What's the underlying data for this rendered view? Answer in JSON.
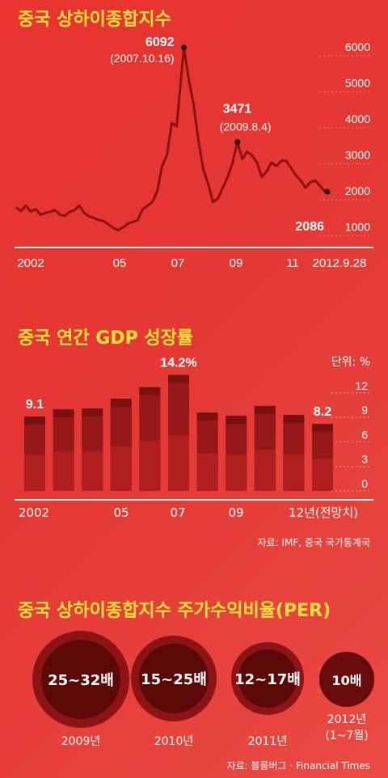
{
  "stock": {
    "title": "중국 상하이종합지수",
    "chart_data": {
      "type": "line",
      "title": "중국 상하이종합지수",
      "x_ticks": [
        "2002",
        "05",
        "07",
        "09",
        "11",
        "2012.9.28"
      ],
      "y_ticks": [
        "1000",
        "2000",
        "3000",
        "4000",
        "5000",
        "6000"
      ],
      "ylim": [
        1000,
        6000
      ],
      "x": [
        "2002.01",
        "2002.03",
        "2002.05",
        "2002.07",
        "2002.09",
        "2002.11",
        "2003.01",
        "2003.03",
        "2003.05",
        "2003.07",
        "2003.09",
        "2003.11",
        "2004.01",
        "2004.03",
        "2004.05",
        "2004.07",
        "2004.09",
        "2004.11",
        "2005.01",
        "2005.03",
        "2005.05",
        "2005.07",
        "2005.09",
        "2005.11",
        "2006.01",
        "2006.03",
        "2006.05",
        "2006.07",
        "2006.09",
        "2006.11",
        "2007.01",
        "2007.03",
        "2007.05",
        "2007.07",
        "2007.10",
        "2007.12",
        "2008.02",
        "2008.04",
        "2008.06",
        "2008.08",
        "2008.10",
        "2008.12",
        "2009.02",
        "2009.04",
        "2009.06",
        "2009.08",
        "2009.10",
        "2009.12",
        "2010.02",
        "2010.04",
        "2010.06",
        "2010.08",
        "2010.10",
        "2010.12",
        "2011.02",
        "2011.04",
        "2011.06",
        "2011.08",
        "2011.10",
        "2011.12",
        "2012.02",
        "2012.04",
        "2012.06",
        "2012.08",
        "2012.09"
      ],
      "values": [
        1650,
        1550,
        1700,
        1540,
        1600,
        1450,
        1500,
        1530,
        1580,
        1450,
        1420,
        1530,
        1580,
        1700,
        1500,
        1400,
        1360,
        1300,
        1270,
        1180,
        1080,
        1020,
        1100,
        1200,
        1250,
        1300,
        1600,
        1700,
        1800,
        2100,
        2800,
        3100,
        4000,
        3900,
        6092,
        5200,
        4500,
        3500,
        2700,
        2300,
        1800,
        1900,
        2200,
        2500,
        2900,
        3471,
        3000,
        3200,
        3100,
        2900,
        2500,
        2650,
        2900,
        2800,
        2950,
        2950,
        2750,
        2550,
        2400,
        2200,
        2350,
        2400,
        2250,
        2100,
        2086
      ],
      "annotations": [
        {
          "label": "6092",
          "sub": "(2007.10.16)",
          "x": "2007.10",
          "y": 6092
        },
        {
          "label": "3471",
          "sub": "(2009.8.4)",
          "x": "2009.08",
          "y": 3471
        },
        {
          "label": "2086",
          "sub": "",
          "x": "2012.09",
          "y": 2086
        }
      ]
    }
  },
  "gdp": {
    "title": "중국 연간 GDP 성장률",
    "unit": "단위: %",
    "source": "자료: IMF, 중국 국가통계국",
    "chart_data": {
      "type": "bar",
      "title": "중국 연간 GDP 성장률",
      "categories": [
        "2002",
        "2003",
        "2004",
        "2005",
        "2006",
        "2007",
        "2008",
        "2009",
        "2010",
        "2011",
        "2012"
      ],
      "values": [
        9.1,
        10.0,
        10.1,
        11.3,
        12.7,
        14.2,
        9.6,
        9.2,
        10.4,
        9.3,
        8.2
      ],
      "x_ticks": [
        "2002",
        "05",
        "07",
        "09",
        "12년(전망치)"
      ],
      "y_ticks": [
        "0",
        "3",
        "6",
        "9",
        "12"
      ],
      "ylim": [
        0,
        15
      ],
      "labels": [
        {
          "index": 0,
          "text": "9.1"
        },
        {
          "index": 5,
          "text": "14.2%"
        },
        {
          "index": 10,
          "text": "8.2"
        }
      ]
    }
  },
  "per": {
    "title": "중국 상하이종합지수 주가수익비율(PER)",
    "source": "자료: 블룸버그 · Financial Times",
    "items": [
      {
        "value": "25~32배",
        "year": "2009년"
      },
      {
        "value": "15~25배",
        "year": "2010년"
      },
      {
        "value": "12~17배",
        "year": "2011년"
      },
      {
        "value": "10배",
        "year": "2012년",
        "year2": "(1~7월)"
      }
    ]
  }
}
